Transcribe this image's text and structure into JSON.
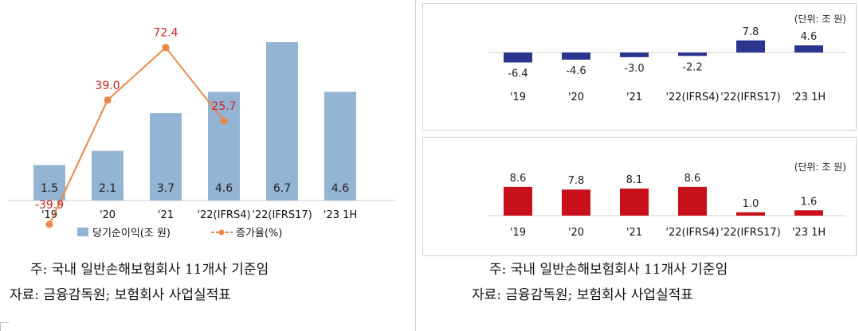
{
  "left_chart": {
    "legend": {
      "bar_label": "당기순이익(조 원)",
      "line_label": "증가율(%)"
    },
    "notes": {
      "note": "주: 국내 일반손해보험회사 11개사 기준임",
      "source": "자료: 금융감독원; 보험회사 사업실적표"
    }
  },
  "right_top": {
    "unit": "(단위: 조 원)"
  },
  "right_bottom": {
    "unit": "(단위: 조 원)"
  },
  "right_notes": {
    "note": "주: 국내 일반손해보험회사 11개사 기준임",
    "source": "자료: 금융감독원; 보험회사 사업실적표"
  },
  "colors": {
    "bar_light": "#94b4d4",
    "line": "#e8894a",
    "line_label": "#cc2020",
    "bar_navy": "#2b3590",
    "bar_red": "#c8101a"
  },
  "chart_data": [
    {
      "type": "bar",
      "categories": [
        "'19",
        "'20",
        "'21",
        "'22(IFRS4)",
        "'22(IFRS17)",
        "'23 1H"
      ],
      "series": [
        {
          "name": "당기순이익(조 원)",
          "values": [
            1.5,
            2.1,
            3.7,
            4.6,
            6.7,
            4.6
          ],
          "value_labels": [
            "1.5",
            "2.1",
            "3.7",
            "4.6",
            "6.7",
            "4.6"
          ]
        },
        {
          "name": "증가율(%)",
          "type": "line",
          "values": [
            -39.9,
            39.0,
            72.4,
            25.7,
            null,
            null
          ],
          "value_labels": [
            "-39.9",
            "39.0",
            "72.4",
            "25.7"
          ]
        }
      ]
    },
    {
      "type": "bar",
      "categories": [
        "'19",
        "'20",
        "'21",
        "'22(IFRS4)",
        "'22(IFRS17)",
        "'23 1H"
      ],
      "values": [
        -6.4,
        -4.6,
        -3.0,
        -2.2,
        7.8,
        4.6
      ],
      "value_labels": [
        "-6.4",
        "-4.6",
        "-3.0",
        "-2.2",
        "7.8",
        "4.6"
      ]
    },
    {
      "type": "bar",
      "categories": [
        "'19",
        "'20",
        "'21",
        "'22(IFRS4)",
        "'22(IFRS17)",
        "'23 1H"
      ],
      "values": [
        8.6,
        7.8,
        8.1,
        8.6,
        1.0,
        1.6
      ],
      "value_labels": [
        "8.6",
        "7.8",
        "8.1",
        "8.6",
        "1.0",
        "1.6"
      ]
    }
  ]
}
